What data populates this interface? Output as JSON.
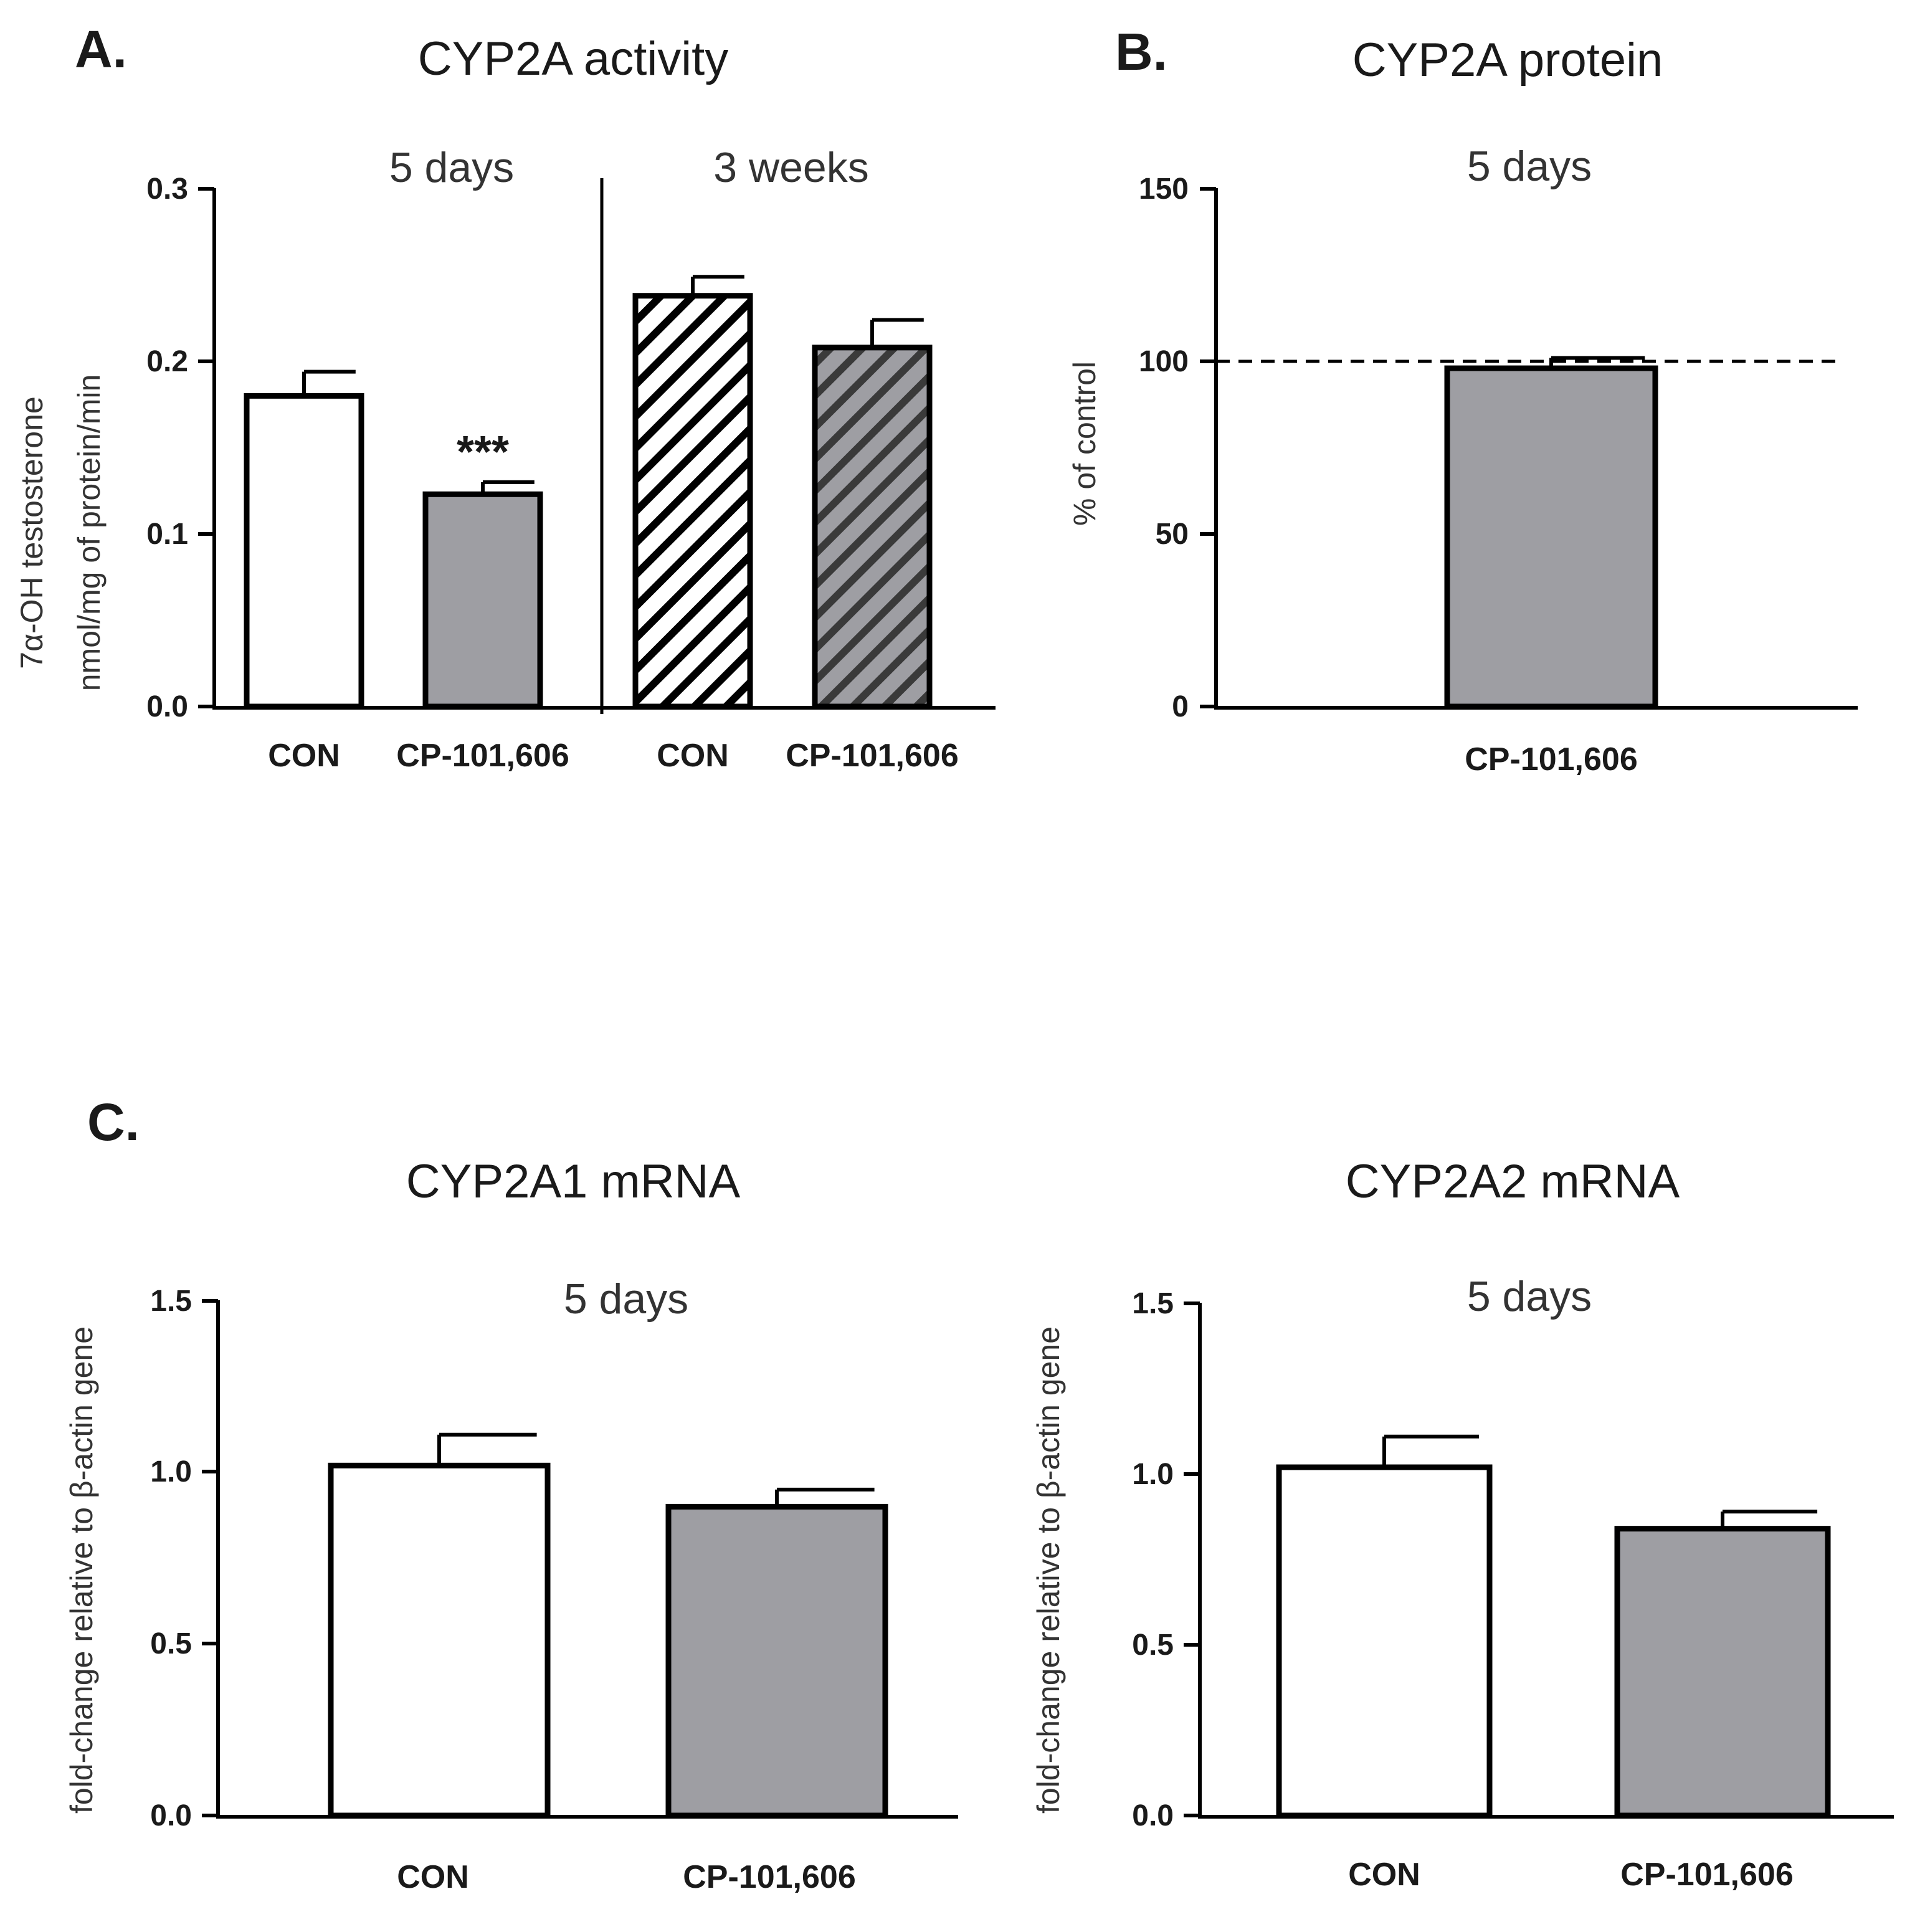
{
  "panels": {
    "a": "A.",
    "b": "B.",
    "c": "C."
  },
  "colors": {
    "axis": "#000000",
    "white": "#ffffff",
    "gray": "#9e9ea3"
  },
  "chart_data": [
    {
      "type": "bar",
      "title": "CYP2A activity",
      "ylabel_lines": [
        "7α-OH testosterone",
        "nmol/mg of protein/min"
      ],
      "ylim": [
        0,
        0.3
      ],
      "yticks": [
        "0.0",
        "0.1",
        "0.2",
        "0.3"
      ],
      "groups": [
        "5 days",
        "3 weeks"
      ],
      "categories": [
        "CON",
        "CP-101,606",
        "CON",
        "CP-101,606"
      ],
      "values": [
        0.18,
        0.123,
        0.238,
        0.208
      ],
      "errors": [
        0.014,
        0.007,
        0.011,
        0.016
      ],
      "fills": [
        "white",
        "gray",
        "hatch-white",
        "hatch-gray"
      ],
      "annotations": [
        "",
        "***",
        "",
        ""
      ]
    },
    {
      "type": "bar",
      "title": "CYP2A protein",
      "subtitle": "5 days",
      "ylabel": "% of control",
      "ylim": [
        0,
        150
      ],
      "yticks": [
        "0",
        "50",
        "100",
        "150"
      ],
      "reference_line": 100,
      "categories": [
        "CP-101,606"
      ],
      "values": [
        98
      ],
      "errors": [
        3
      ],
      "fills": [
        "gray"
      ]
    },
    {
      "type": "bar",
      "title": "CYP2A1 mRNA",
      "subtitle": "5 days",
      "ylabel": "fold-change relative to β-actin gene",
      "ylim": [
        0,
        1.5
      ],
      "yticks": [
        "0.0",
        "0.5",
        "1.0",
        "1.5"
      ],
      "categories": [
        "CON",
        "CP-101,606"
      ],
      "values": [
        1.02,
        0.9
      ],
      "errors": [
        0.09,
        0.05
      ],
      "fills": [
        "white",
        "gray"
      ]
    },
    {
      "type": "bar",
      "title": "CYP2A2 mRNA",
      "subtitle": "5 days",
      "ylabel": "fold-change relative to β-actin gene",
      "ylim": [
        0,
        1.5
      ],
      "yticks": [
        "0.0",
        "0.5",
        "1.0",
        "1.5"
      ],
      "categories": [
        "CON",
        "CP-101,606"
      ],
      "values": [
        1.02,
        0.84
      ],
      "errors": [
        0.09,
        0.05
      ],
      "fills": [
        "white",
        "gray"
      ]
    }
  ]
}
